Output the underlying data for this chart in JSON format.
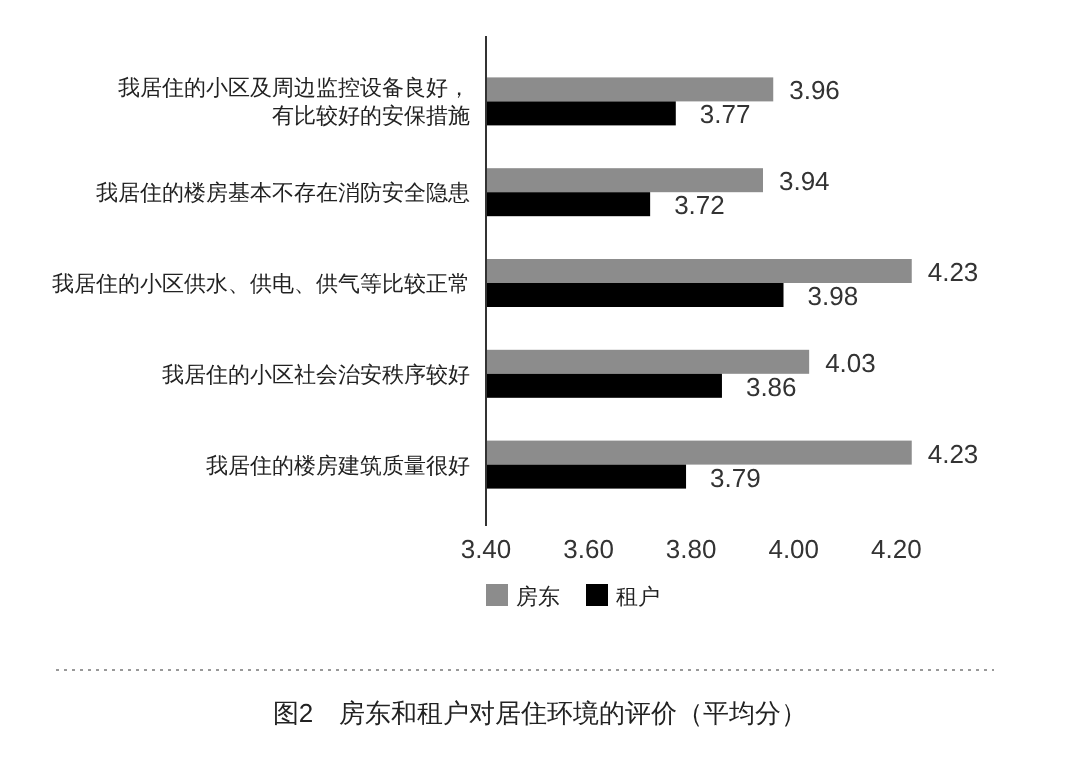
{
  "chart_data": {
    "type": "bar",
    "orientation": "horizontal",
    "title": "图2　房东和租户对居住环境的评价（平均分）",
    "categories": [
      "我居住的小区及周边监控设备良好，有比较好的安保措施",
      "我居住的楼房基本不存在消防安全隐患",
      "我居住的小区供水、供电、供气等比较正常",
      "我居住的小区社会治安秩序较好",
      "我居住的楼房建筑质量很好"
    ],
    "series": [
      {
        "name": "房东",
        "color": "#8c8c8c",
        "values": [
          3.96,
          3.94,
          4.23,
          4.03,
          4.23
        ]
      },
      {
        "name": "租户",
        "color": "#000000",
        "values": [
          3.77,
          3.72,
          3.98,
          3.86,
          3.79
        ]
      }
    ],
    "xlim": [
      3.4,
      4.25
    ],
    "xticks": [
      {
        "value": 3.4,
        "label": "3.40"
      },
      {
        "value": 3.6,
        "label": "3.60"
      },
      {
        "value": 3.8,
        "label": "3.80"
      },
      {
        "value": 4.0,
        "label": "4.00"
      },
      {
        "value": 4.2,
        "label": "4.20"
      }
    ],
    "data_labels": true,
    "legend": "bottom",
    "grid": false
  }
}
